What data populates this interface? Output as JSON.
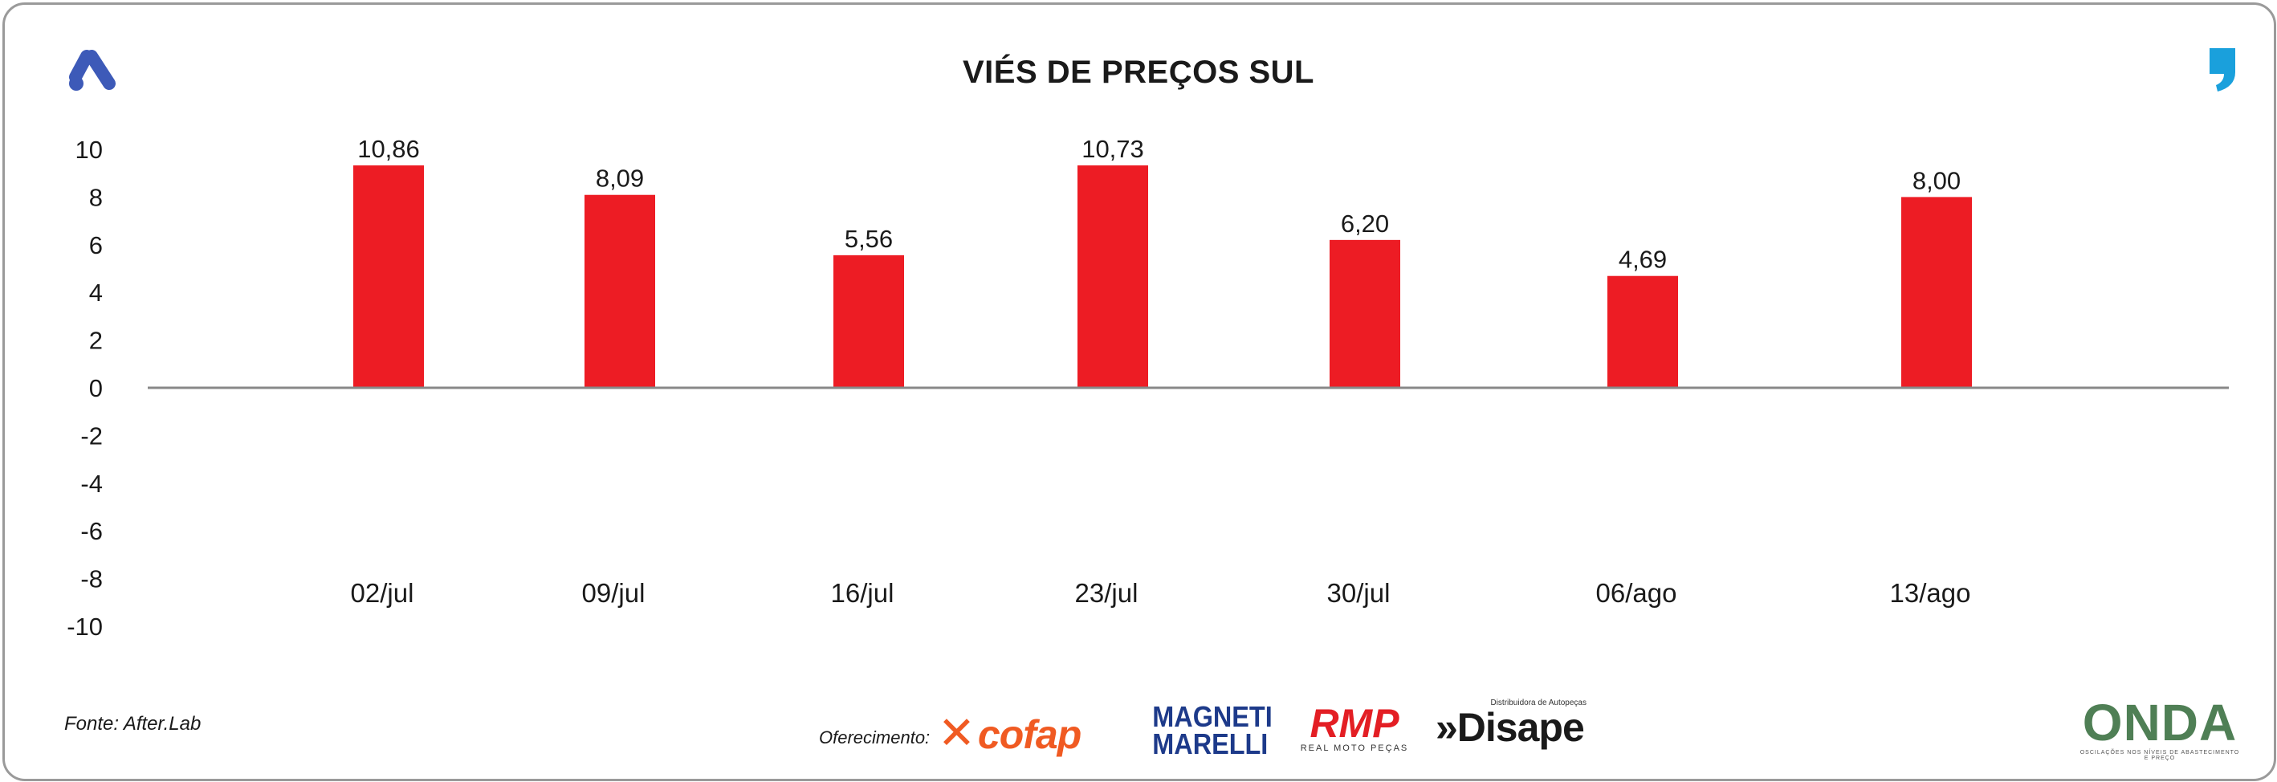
{
  "chart_data": {
    "type": "bar",
    "title": "VIÉS DE PREÇOS SUL",
    "categories": [
      "02/jul",
      "09/jul",
      "16/jul",
      "23/jul",
      "30/jul",
      "06/ago",
      "13/ago"
    ],
    "values": [
      10.86,
      8.09,
      5.56,
      10.73,
      6.2,
      4.69,
      8.0
    ],
    "value_labels": [
      "10,86",
      "8,09",
      "5,56",
      "10,73",
      "6,20",
      "4,69",
      "8,00"
    ],
    "y_ticks": [
      "10",
      "8",
      "6",
      "4",
      "2",
      "0",
      "-2",
      "-4",
      "-6",
      "-8",
      "-10"
    ],
    "ylim": [
      -10,
      10
    ],
    "xlabel": "",
    "ylabel": "",
    "grid": false,
    "bar_color": "#ed1c24"
  },
  "footer": {
    "source": "Fonte: After.Lab",
    "sponsor_label": "Oferecimento:",
    "sponsors": {
      "cofap": "cofap",
      "magneti_line1": "MAGNETI",
      "magneti_line2": "MARELLI",
      "rmp": "RMP",
      "rmp_sub": "REAL MOTO PEÇAS",
      "disape": "»Disape",
      "disape_tag": "Distribuidora de Autopeças",
      "onda": "ONDA",
      "onda_sub": "OSCILAÇÕES NOS NÍVEIS DE ABASTECIMENTO E PREÇO"
    }
  },
  "colors": {
    "brand_blue": "#3d5ab8",
    "quote_blue": "#1aa0dc",
    "axis": "#888888"
  }
}
